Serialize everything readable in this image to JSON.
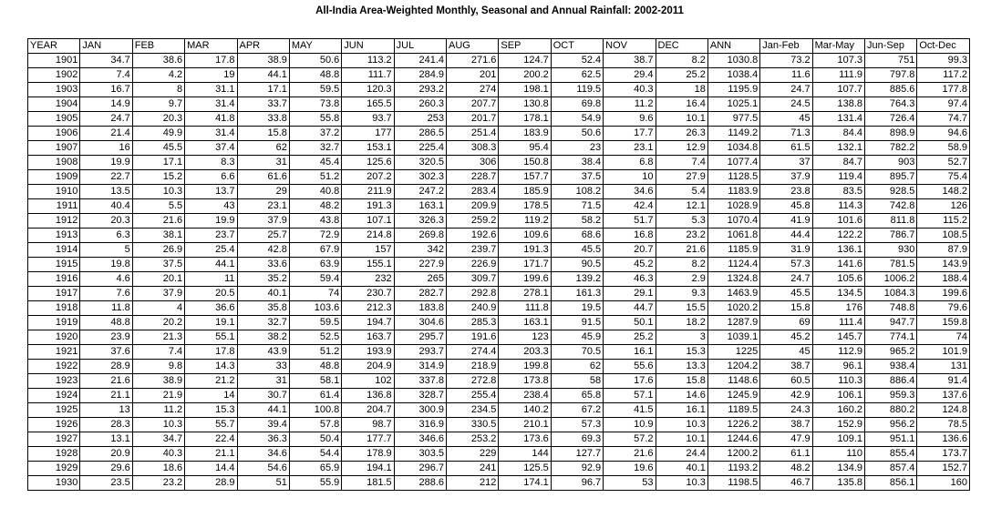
{
  "title": "All-India Area-Weighted Monthly, Seasonal and Annual Rainfall: 2002-2011",
  "table": {
    "header": [
      "YEAR",
      "JAN",
      "FEB",
      "MAR",
      "APR",
      "MAY",
      "JUN",
      "JUL",
      "AUG",
      "SEP",
      "OCT",
      "NOV",
      "DEC",
      "ANN",
      "Jan-Feb",
      "Mar-May",
      "Jun-Sep",
      "Oct-Dec"
    ],
    "rows": [
      [
        1901,
        34.7,
        38.6,
        17.8,
        38.9,
        50.6,
        113.2,
        241.4,
        271.6,
        124.7,
        52.4,
        38.7,
        8.2,
        1030.8,
        73.2,
        107.3,
        751,
        99.3
      ],
      [
        1902,
        7.4,
        4.2,
        19,
        44.1,
        48.8,
        111.7,
        284.9,
        201,
        200.2,
        62.5,
        29.4,
        25.2,
        1038.4,
        11.6,
        111.9,
        797.8,
        117.2
      ],
      [
        1903,
        16.7,
        8,
        31.1,
        17.1,
        59.5,
        120.3,
        293.2,
        274,
        198.1,
        119.5,
        40.3,
        18,
        1195.9,
        24.7,
        107.7,
        885.6,
        177.8
      ],
      [
        1904,
        14.9,
        9.7,
        31.4,
        33.7,
        73.8,
        165.5,
        260.3,
        207.7,
        130.8,
        69.8,
        11.2,
        16.4,
        1025.1,
        24.5,
        138.8,
        764.3,
        97.4
      ],
      [
        1905,
        24.7,
        20.3,
        41.8,
        33.8,
        55.8,
        93.7,
        253,
        201.7,
        178.1,
        54.9,
        9.6,
        10.1,
        977.5,
        45,
        131.4,
        726.4,
        74.7
      ],
      [
        1906,
        21.4,
        49.9,
        31.4,
        15.8,
        37.2,
        177,
        286.5,
        251.4,
        183.9,
        50.6,
        17.7,
        26.3,
        1149.2,
        71.3,
        84.4,
        898.9,
        94.6
      ],
      [
        1907,
        16,
        45.5,
        37.4,
        62,
        32.7,
        153.1,
        225.4,
        308.3,
        95.4,
        23,
        23.1,
        12.9,
        1034.8,
        61.5,
        132.1,
        782.2,
        58.9
      ],
      [
        1908,
        19.9,
        17.1,
        8.3,
        31,
        45.4,
        125.6,
        320.5,
        306,
        150.8,
        38.4,
        6.8,
        7.4,
        1077.4,
        37,
        84.7,
        903,
        52.7
      ],
      [
        1909,
        22.7,
        15.2,
        6.6,
        61.6,
        51.2,
        207.2,
        302.3,
        228.7,
        157.7,
        37.5,
        10,
        27.9,
        1128.5,
        37.9,
        119.4,
        895.7,
        75.4
      ],
      [
        1910,
        13.5,
        10.3,
        13.7,
        29,
        40.8,
        211.9,
        247.2,
        283.4,
        185.9,
        108.2,
        34.6,
        5.4,
        1183.9,
        23.8,
        83.5,
        928.5,
        148.2
      ],
      [
        1911,
        40.4,
        5.5,
        43,
        23.1,
        48.2,
        191.3,
        163.1,
        209.9,
        178.5,
        71.5,
        42.4,
        12.1,
        1028.9,
        45.8,
        114.3,
        742.8,
        126
      ],
      [
        1912,
        20.3,
        21.6,
        19.9,
        37.9,
        43.8,
        107.1,
        326.3,
        259.2,
        119.2,
        58.2,
        51.7,
        5.3,
        1070.4,
        41.9,
        101.6,
        811.8,
        115.2
      ],
      [
        1913,
        6.3,
        38.1,
        23.7,
        25.7,
        72.9,
        214.8,
        269.8,
        192.6,
        109.6,
        68.6,
        16.8,
        23.2,
        1061.8,
        44.4,
        122.2,
        786.7,
        108.5
      ],
      [
        1914,
        5,
        26.9,
        25.4,
        42.8,
        67.9,
        157,
        342,
        239.7,
        191.3,
        45.5,
        20.7,
        21.6,
        1185.9,
        31.9,
        136.1,
        930,
        87.9
      ],
      [
        1915,
        19.8,
        37.5,
        44.1,
        33.6,
        63.9,
        155.1,
        227.9,
        226.9,
        171.7,
        90.5,
        45.2,
        8.2,
        1124.4,
        57.3,
        141.6,
        781.5,
        143.9
      ],
      [
        1916,
        4.6,
        20.1,
        11,
        35.2,
        59.4,
        232,
        265,
        309.7,
        199.6,
        139.2,
        46.3,
        2.9,
        1324.8,
        24.7,
        105.6,
        1006.2,
        188.4
      ],
      [
        1917,
        7.6,
        37.9,
        20.5,
        40.1,
        74,
        230.7,
        282.7,
        292.8,
        278.1,
        161.3,
        29.1,
        9.3,
        1463.9,
        45.5,
        134.5,
        1084.3,
        199.6
      ],
      [
        1918,
        11.8,
        4,
        36.6,
        35.8,
        103.6,
        212.3,
        183.8,
        240.9,
        111.8,
        19.5,
        44.7,
        15.5,
        1020.2,
        15.8,
        176,
        748.8,
        79.6
      ],
      [
        1919,
        48.8,
        20.2,
        19.1,
        32.7,
        59.5,
        194.7,
        304.6,
        285.3,
        163.1,
        91.5,
        50.1,
        18.2,
        1287.9,
        69,
        111.4,
        947.7,
        159.8
      ],
      [
        1920,
        23.9,
        21.3,
        55.1,
        38.2,
        52.5,
        163.7,
        295.7,
        191.6,
        123,
        45.9,
        25.2,
        3,
        1039.1,
        45.2,
        145.7,
        774.1,
        74
      ],
      [
        1921,
        37.6,
        7.4,
        17.8,
        43.9,
        51.2,
        193.9,
        293.7,
        274.4,
        203.3,
        70.5,
        16.1,
        15.3,
        1225,
        45,
        112.9,
        965.2,
        101.9
      ],
      [
        1922,
        28.9,
        9.8,
        14.3,
        33,
        48.8,
        204.9,
        314.9,
        218.9,
        199.8,
        62,
        55.6,
        13.3,
        1204.2,
        38.7,
        96.1,
        938.4,
        131
      ],
      [
        1923,
        21.6,
        38.9,
        21.2,
        31,
        58.1,
        102,
        337.8,
        272.8,
        173.8,
        58,
        17.6,
        15.8,
        1148.6,
        60.5,
        110.3,
        886.4,
        91.4
      ],
      [
        1924,
        21.1,
        21.9,
        14,
        30.7,
        61.4,
        136.8,
        328.7,
        255.4,
        238.4,
        65.8,
        57.1,
        14.6,
        1245.9,
        42.9,
        106.1,
        959.3,
        137.6
      ],
      [
        1925,
        13,
        11.2,
        15.3,
        44.1,
        100.8,
        204.7,
        300.9,
        234.5,
        140.2,
        67.2,
        41.5,
        16.1,
        1189.5,
        24.3,
        160.2,
        880.2,
        124.8
      ],
      [
        1926,
        28.3,
        10.3,
        55.7,
        39.4,
        57.8,
        98.7,
        316.9,
        330.5,
        210.1,
        57.3,
        10.9,
        10.3,
        1226.2,
        38.7,
        152.9,
        956.2,
        78.5
      ],
      [
        1927,
        13.1,
        34.7,
        22.4,
        36.3,
        50.4,
        177.7,
        346.6,
        253.2,
        173.6,
        69.3,
        57.2,
        10.1,
        1244.6,
        47.9,
        109.1,
        951.1,
        136.6
      ],
      [
        1928,
        20.9,
        40.3,
        21.1,
        34.6,
        54.4,
        178.9,
        303.5,
        229,
        144,
        127.7,
        21.6,
        24.4,
        1200.2,
        61.1,
        110,
        855.4,
        173.7
      ],
      [
        1929,
        29.6,
        18.6,
        14.4,
        54.6,
        65.9,
        194.1,
        296.7,
        241,
        125.5,
        92.9,
        19.6,
        40.1,
        1193.2,
        48.2,
        134.9,
        857.4,
        152.7
      ],
      [
        1930,
        23.5,
        23.2,
        28.9,
        51,
        55.9,
        181.5,
        288.6,
        212,
        174.1,
        96.7,
        53,
        10.3,
        1198.5,
        46.7,
        135.8,
        856.1,
        160
      ]
    ]
  }
}
